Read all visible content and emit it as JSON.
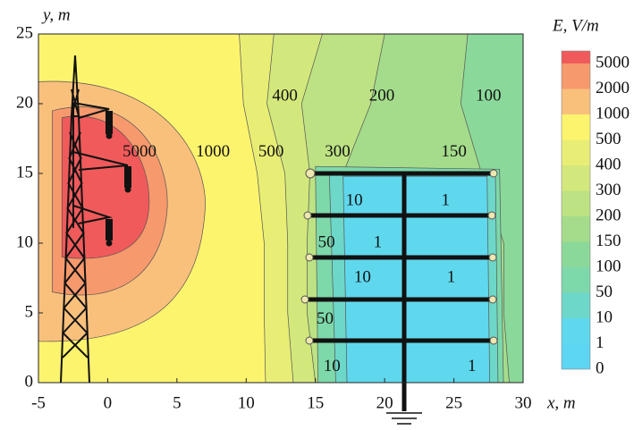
{
  "chart_data": {
    "type": "contour",
    "xlabel": "x, m",
    "ylabel": "y, m",
    "colorbar_title": "E, V/m",
    "xlim": [
      -5,
      30
    ],
    "ylim": [
      0,
      25
    ],
    "xticks": [
      -5,
      0,
      5,
      10,
      15,
      20,
      25,
      30
    ],
    "yticks": [
      0,
      5,
      10,
      15,
      20,
      25
    ],
    "levels": [
      0,
      1,
      10,
      50,
      100,
      150,
      200,
      300,
      400,
      500,
      1000,
      2000,
      5000
    ],
    "colors": [
      "#5cd6f2",
      "#5fd8ee",
      "#6dd7c9",
      "#7dd8aa",
      "#8bd99a",
      "#a4dc8b",
      "#bde283",
      "#d3e87c",
      "#e8ee75",
      "#fdf46e",
      "#f9c07c",
      "#f6996c",
      "#f05a5b"
    ],
    "contour_labels": [
      5000,
      1000,
      500,
      400,
      200,
      100,
      300,
      150,
      10,
      1,
      50,
      1,
      10,
      1,
      50,
      10,
      1
    ]
  }
}
